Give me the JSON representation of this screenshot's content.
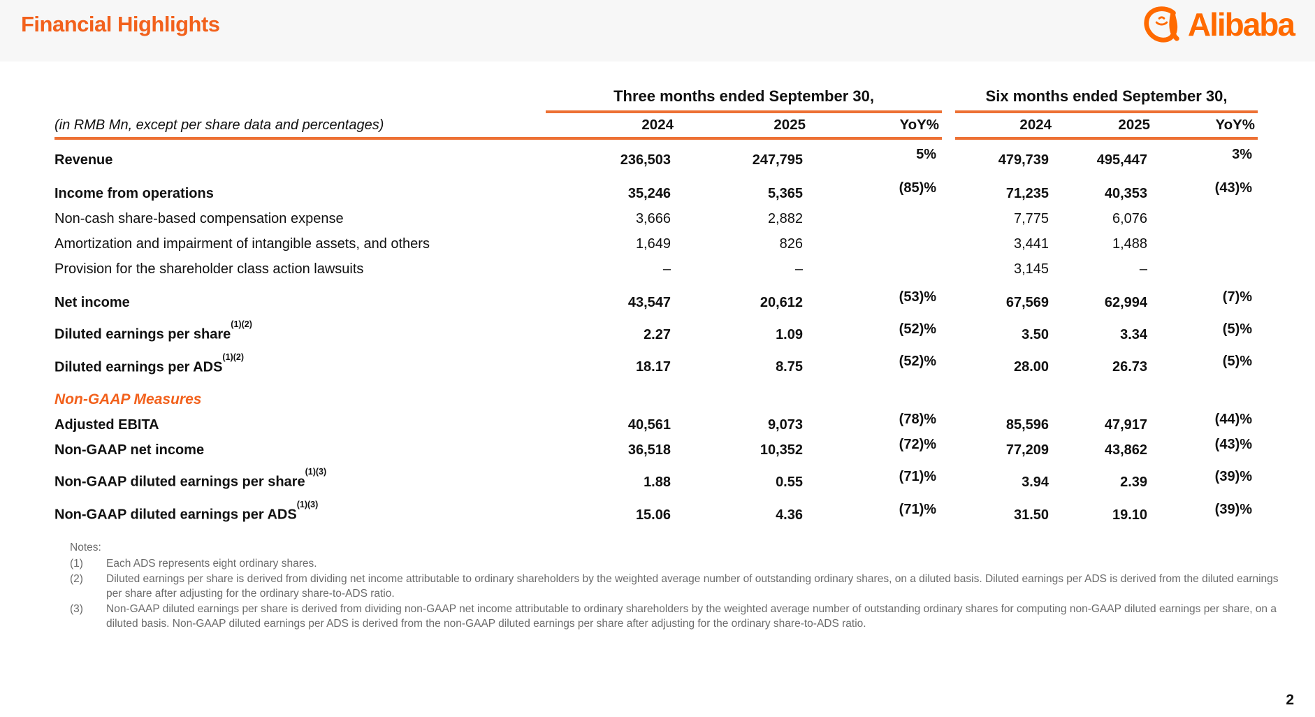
{
  "header": {
    "title": "Financial Highlights",
    "logo": {
      "wordmark": "Alibaba"
    }
  },
  "colors": {
    "accent_orange": "#F2611C",
    "rule_orange": "#ED7134",
    "logo_orange": "#FF6A00",
    "notes_gray": "#6B6B6B",
    "header_bar_gray": "#F7F7F7"
  },
  "table": {
    "unit_label": "(in RMB Mn, except per share data and percentages)",
    "group_headers": [
      "Three months ended September 30,",
      "Six months ended September 30,"
    ],
    "col_headers": [
      "2024",
      "2025",
      "YoY%"
    ],
    "rows": [
      {
        "label": "Revenue",
        "style": "bold",
        "spacing": "first",
        "values": [
          "236,503",
          "247,795",
          "5%",
          "479,739",
          "495,447",
          "3%"
        ]
      },
      {
        "label": "Income from operations",
        "style": "bold",
        "spacing": "gap-before",
        "values": [
          "35,246",
          "5,365",
          "(85)%",
          "71,235",
          "40,353",
          "(43)%"
        ]
      },
      {
        "label": "Non-cash share-based compensation expense",
        "style": "regular",
        "values": [
          "3,666",
          "2,882",
          "",
          "7,775",
          "6,076",
          ""
        ]
      },
      {
        "label": "Amortization and impairment of intangible assets, and others",
        "style": "regular",
        "values": [
          "1,649",
          "826",
          "",
          "3,441",
          "1,488",
          ""
        ]
      },
      {
        "label": "Provision for the shareholder class action lawsuits",
        "style": "regular",
        "values": [
          "–",
          "–",
          "",
          "3,145",
          "–",
          ""
        ]
      },
      {
        "label": "Net income",
        "style": "bold",
        "spacing": "gap-before",
        "values": [
          "43,547",
          "20,612",
          "(53)%",
          "67,569",
          "62,994",
          "(7)%"
        ]
      },
      {
        "label": "Diluted earnings per share",
        "sup": "(1)(2)",
        "style": "bold",
        "values": [
          "2.27",
          "1.09",
          "(52)%",
          "3.50",
          "3.34",
          "(5)%"
        ]
      },
      {
        "label": "Diluted earnings per ADS",
        "sup": "(1)(2)",
        "style": "bold",
        "values": [
          "18.17",
          "8.75",
          "(52)%",
          "28.00",
          "26.73",
          "(5)%"
        ]
      },
      {
        "label": "Non-GAAP Measures",
        "type": "section",
        "spacing": "gap-before"
      },
      {
        "label": "Adjusted EBITA",
        "style": "bold",
        "values": [
          "40,561",
          "9,073",
          "(78)%",
          "85,596",
          "47,917",
          "(44)%"
        ]
      },
      {
        "label": "Non-GAAP net income",
        "style": "bold",
        "values": [
          "36,518",
          "10,352",
          "(72)%",
          "77,209",
          "43,862",
          "(43)%"
        ]
      },
      {
        "label": "Non-GAAP diluted earnings per share",
        "sup": "(1)(3)",
        "style": "bold",
        "values": [
          "1.88",
          "0.55",
          "(71)%",
          "3.94",
          "2.39",
          "(39)%"
        ]
      },
      {
        "label": "Non-GAAP diluted earnings per ADS",
        "sup": "(1)(3)",
        "style": "bold",
        "values": [
          "15.06",
          "4.36",
          "(71)%",
          "31.50",
          "19.10",
          "(39)%"
        ]
      }
    ]
  },
  "notes": {
    "heading": "Notes:",
    "items": [
      {
        "num": "(1)",
        "text": "Each ADS represents eight ordinary shares."
      },
      {
        "num": "(2)",
        "text": "Diluted earnings per share is derived from dividing net income attributable to ordinary shareholders by the weighted average number of outstanding ordinary shares, on a diluted basis. Diluted earnings per ADS is derived from the diluted earnings per share after adjusting for the ordinary share-to-ADS ratio."
      },
      {
        "num": "(3)",
        "text": "Non-GAAP diluted earnings per share is derived from dividing non-GAAP net income attributable to ordinary shareholders by the weighted average number of outstanding ordinary shares for computing non-GAAP diluted earnings per share, on a diluted basis. Non-GAAP diluted earnings per ADS is derived from the non-GAAP diluted earnings per share after adjusting for the ordinary share-to-ADS ratio."
      }
    ]
  },
  "page": {
    "page_number": "2"
  }
}
